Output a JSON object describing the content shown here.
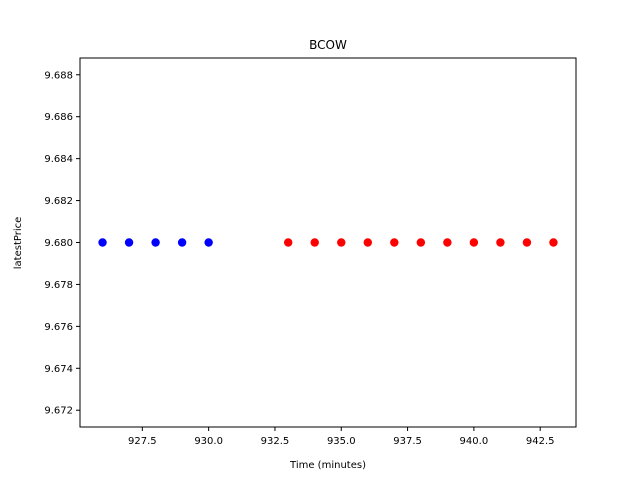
{
  "chart_data": {
    "type": "scatter",
    "title": "BCOW",
    "xlabel": "Time (minutes)",
    "ylabel": "latestPrice",
    "xlim": [
      925.15,
      943.85
    ],
    "ylim": [
      9.6712,
      9.6888
    ],
    "grid": false,
    "x_ticks": [
      927.5,
      930.0,
      932.5,
      935.0,
      937.5,
      940.0,
      942.5
    ],
    "x_tick_labels": [
      "927.5",
      "930.0",
      "932.5",
      "935.0",
      "937.5",
      "940.0",
      "942.5"
    ],
    "y_ticks": [
      9.672,
      9.674,
      9.676,
      9.678,
      9.68,
      9.682,
      9.684,
      9.686,
      9.688
    ],
    "y_tick_labels": [
      "9.672",
      "9.674",
      "9.676",
      "9.678",
      "9.680",
      "9.682",
      "9.684",
      "9.686",
      "9.688"
    ],
    "series": [
      {
        "color": "#0000ff",
        "x": [
          926,
          927,
          928,
          929,
          930
        ],
        "y": [
          9.68,
          9.68,
          9.68,
          9.68,
          9.68
        ]
      },
      {
        "color": "#ff0000",
        "x": [
          933,
          934,
          935,
          936,
          937,
          938,
          939,
          940,
          941,
          942,
          943
        ],
        "y": [
          9.68,
          9.68,
          9.68,
          9.68,
          9.68,
          9.68,
          9.68,
          9.68,
          9.68,
          9.68,
          9.68
        ]
      }
    ]
  }
}
